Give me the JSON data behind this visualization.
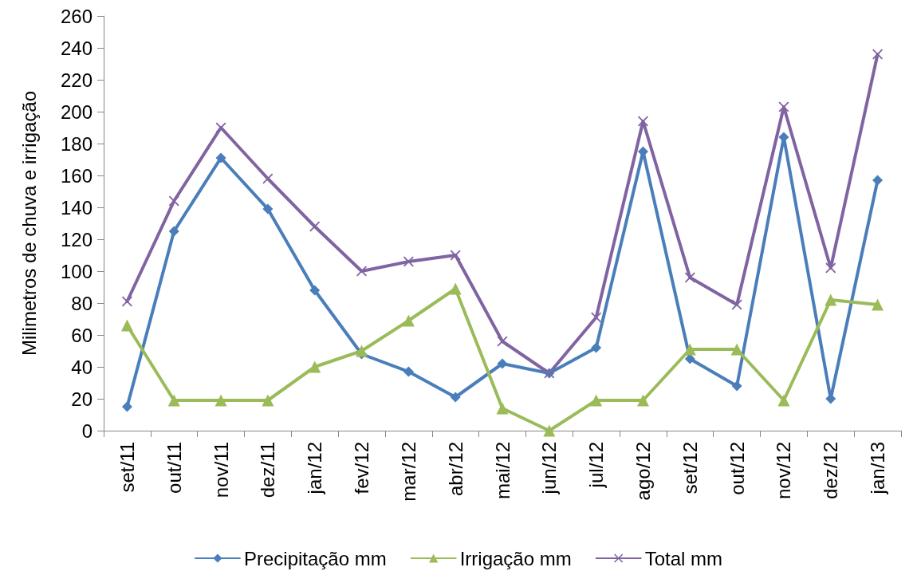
{
  "chart_data": {
    "type": "line",
    "ylabel": "Milimetros de chuva e irrigação",
    "categories": [
      "set/11",
      "out/11",
      "nov/11",
      "dez/11",
      "jan/12",
      "fev/12",
      "mar/12",
      "abr/12",
      "mai/12",
      "jun/12",
      "jul/12",
      "ago/12",
      "set/12",
      "out/12",
      "nov/12",
      "dez/12",
      "jan/13"
    ],
    "series": [
      {
        "name": "Precipitação mm",
        "color": "#4a7ebb",
        "marker": "diamond",
        "values": [
          15,
          125,
          171,
          139,
          88,
          48,
          37,
          21,
          42,
          36,
          52,
          175,
          45,
          28,
          184,
          20,
          157
        ]
      },
      {
        "name": "Irrigação mm",
        "color": "#9bbb59",
        "marker": "triangle",
        "values": [
          66,
          19,
          19,
          19,
          40,
          50,
          69,
          89,
          14,
          0,
          19,
          19,
          51,
          51,
          19,
          82,
          79
        ]
      },
      {
        "name": "Total mm",
        "color": "#8064a2",
        "marker": "cross",
        "values": [
          81,
          144,
          190,
          158,
          128,
          100,
          106,
          110,
          56,
          36,
          71,
          194,
          96,
          79,
          203,
          102,
          236
        ]
      }
    ],
    "ylim": [
      0,
      260
    ],
    "yticks": [
      0,
      20,
      40,
      60,
      80,
      100,
      120,
      140,
      160,
      180,
      200,
      220,
      240,
      260
    ],
    "grid": false,
    "legend": "bottom",
    "line_style": "solid"
  }
}
